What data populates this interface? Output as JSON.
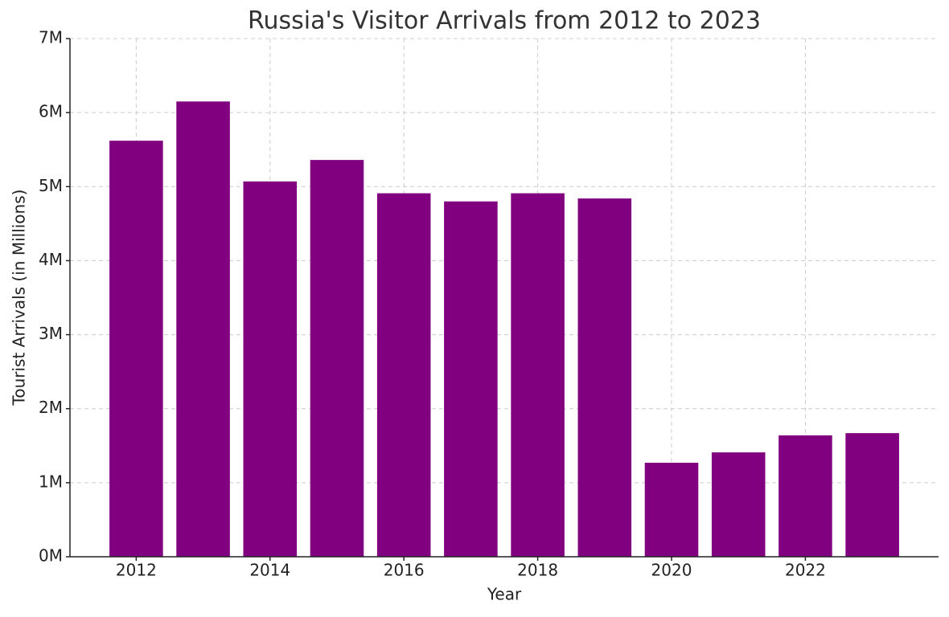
{
  "chart_data": {
    "type": "bar",
    "title": "Russia's Visitor Arrivals from 2012 to 2023",
    "x_label": "Year",
    "y_label": "Tourist Arrivals (in Millions)",
    "x": [
      2012,
      2013,
      2014,
      2015,
      2016,
      2017,
      2018,
      2019,
      2020,
      2021,
      2022,
      2023
    ],
    "values": [
      5.62,
      6.15,
      5.07,
      5.36,
      4.91,
      4.8,
      4.91,
      4.84,
      1.27,
      1.41,
      1.64,
      1.67
    ],
    "color": "#800080",
    "xlim": [
      2011.01,
      2023.99
    ],
    "xticks": [
      2012,
      2014,
      2016,
      2018,
      2020,
      2022
    ],
    "ylim": [
      0,
      7
    ],
    "yticks": [
      {
        "value": 0,
        "label": "0M"
      },
      {
        "value": 1,
        "label": "1M"
      },
      {
        "value": 2,
        "label": "2M"
      },
      {
        "value": 3,
        "label": "3M"
      },
      {
        "value": 4,
        "label": "4M"
      },
      {
        "value": 5,
        "label": "5M"
      },
      {
        "value": 6,
        "label": "6M"
      },
      {
        "value": 7,
        "label": "7M"
      }
    ],
    "grid": true
  }
}
